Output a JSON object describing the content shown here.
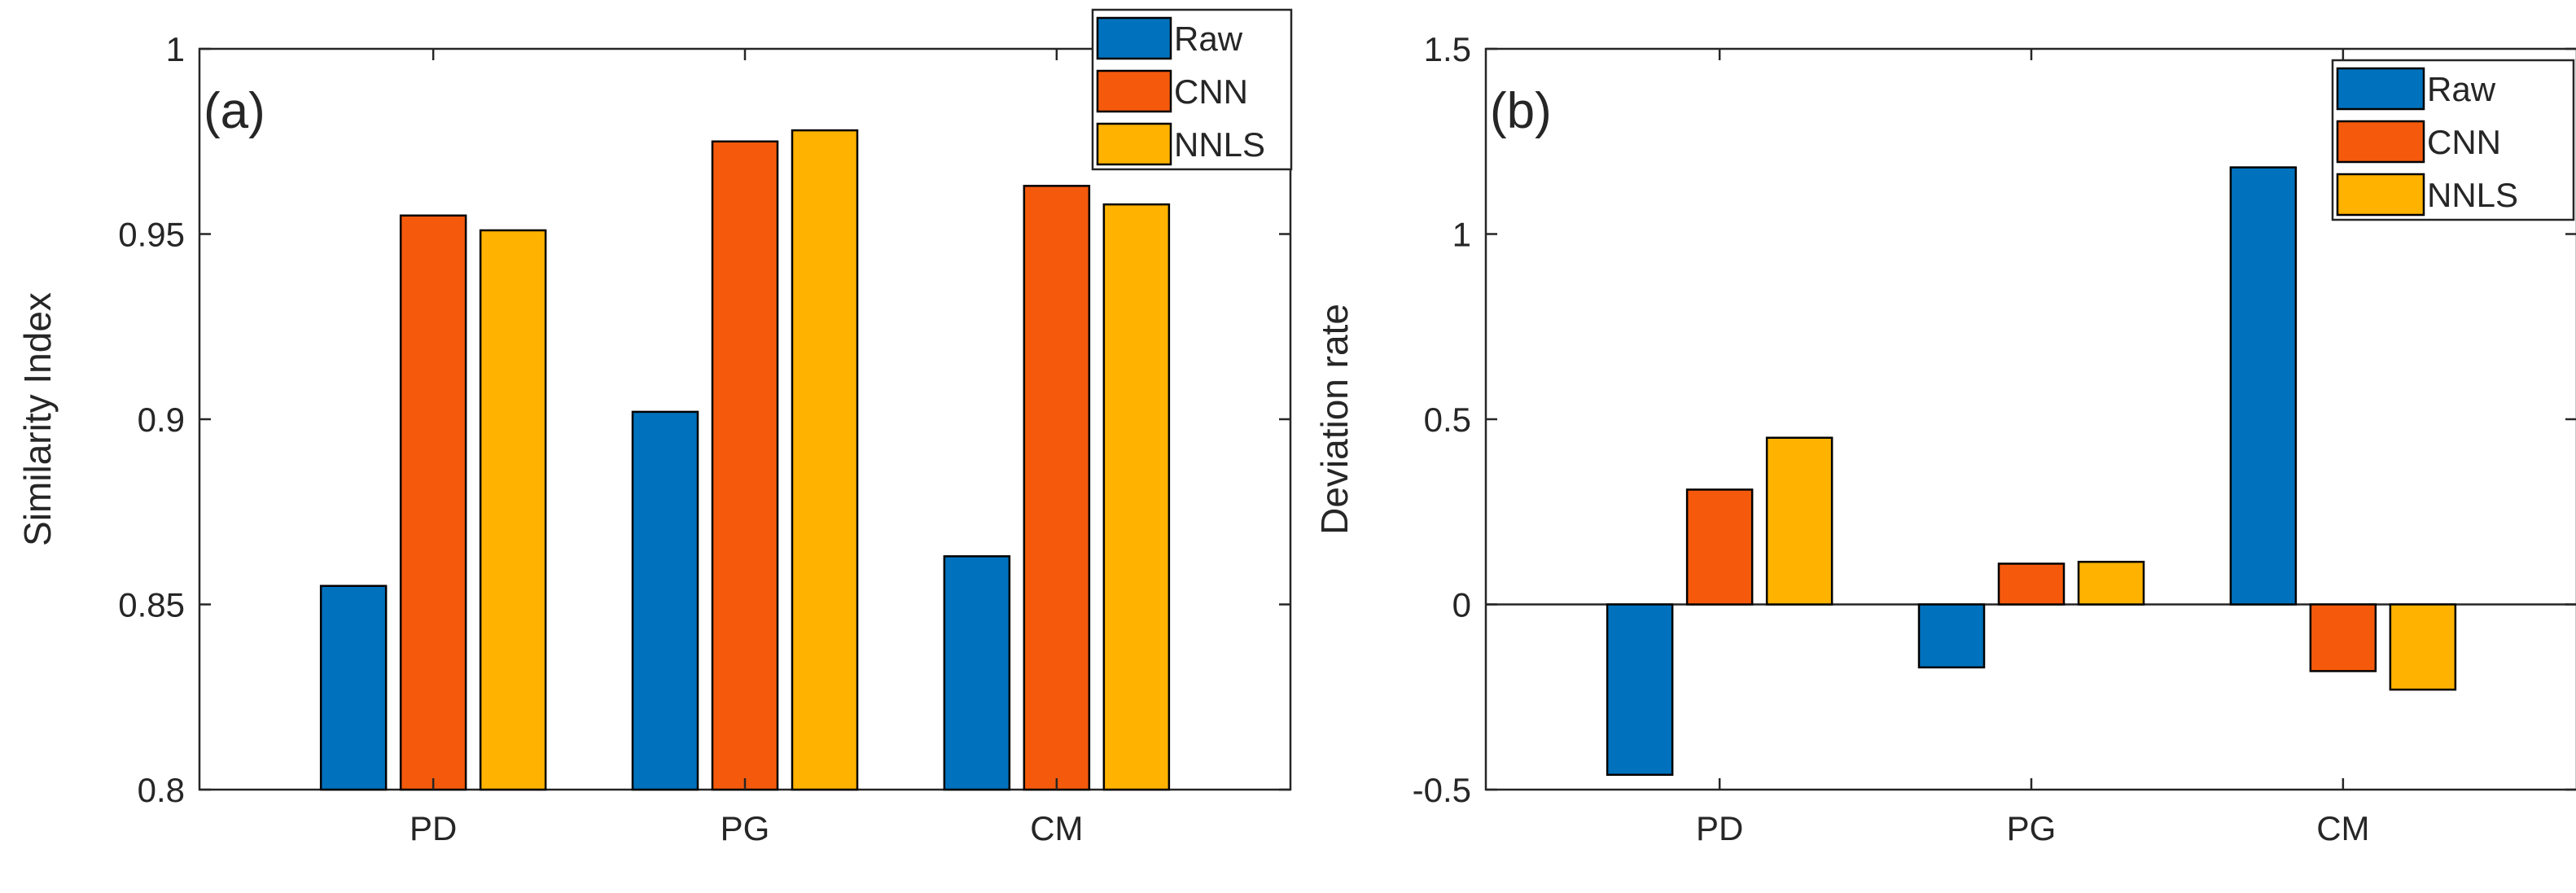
{
  "colors": {
    "raw": "#0072BD",
    "cnn": "#F55A0C",
    "nnls": "#FFB300"
  },
  "chart_data": [
    {
      "type": "bar",
      "panel_label": "(a)",
      "ylabel": "Similarity Index",
      "xlabel": "",
      "categories": [
        "PD",
        "PG",
        "CM"
      ],
      "ylim": [
        0.8,
        1.0
      ],
      "yticks": [
        "0.8",
        "0.85",
        "0.9",
        "0.95",
        "1"
      ],
      "ytick_values": [
        0.8,
        0.85,
        0.9,
        0.95,
        1.0
      ],
      "legend_position": "top-right",
      "series": [
        {
          "name": "Raw",
          "color_key": "raw",
          "values": [
            0.855,
            0.902,
            0.863
          ]
        },
        {
          "name": "CNN",
          "color_key": "cnn",
          "values": [
            0.955,
            0.975,
            0.963
          ]
        },
        {
          "name": "NNLS",
          "color_key": "nnls",
          "values": [
            0.951,
            0.978,
            0.958
          ]
        }
      ]
    },
    {
      "type": "bar",
      "panel_label": "(b)",
      "ylabel": "Deviation rate",
      "xlabel": "",
      "categories": [
        "PD",
        "PG",
        "CM"
      ],
      "ylim": [
        -0.5,
        1.5
      ],
      "yticks": [
        "-0.5",
        "0",
        "0.5",
        "1",
        "1.5"
      ],
      "ytick_values": [
        -0.5,
        0,
        0.5,
        1.0,
        1.5
      ],
      "legend_position": "top-right",
      "series": [
        {
          "name": "Raw",
          "color_key": "raw",
          "values": [
            -0.46,
            -0.17,
            1.18
          ]
        },
        {
          "name": "CNN",
          "color_key": "cnn",
          "values": [
            0.31,
            0.11,
            -0.18
          ]
        },
        {
          "name": "NNLS",
          "color_key": "nnls",
          "values": [
            0.45,
            0.115,
            -0.23
          ]
        }
      ]
    }
  ]
}
